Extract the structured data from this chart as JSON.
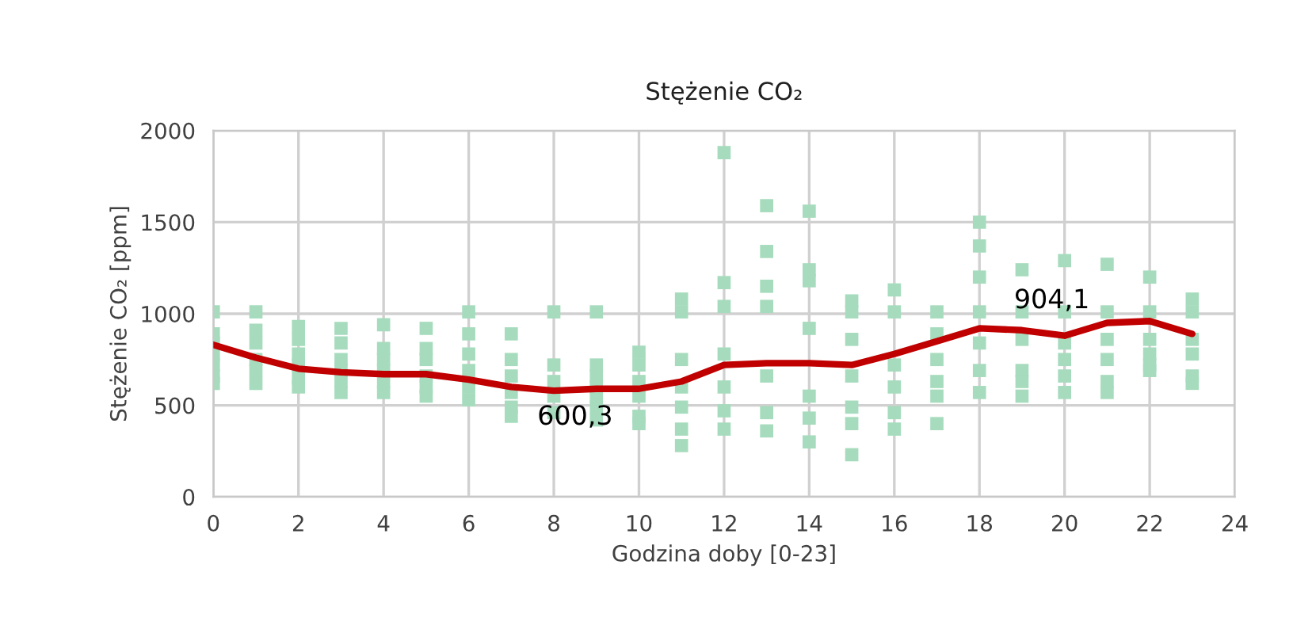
{
  "chart_data": {
    "type": "scatter",
    "title": "Stężenie CO₂",
    "xlabel": "Godzina doby [0-23]",
    "ylabel": "Stężenie CO₂ [ppm]",
    "xlim": [
      0,
      24
    ],
    "ylim": [
      0,
      2000
    ],
    "xticks": [
      0,
      2,
      4,
      6,
      8,
      10,
      12,
      14,
      16,
      18,
      20,
      22,
      24
    ],
    "yticks": [
      0,
      500,
      1000,
      1500,
      2000
    ],
    "grid": true,
    "series": [
      {
        "color": "#a6dcbd",
        "marker": "square",
        "x": [
          0,
          0,
          0,
          0,
          0,
          0,
          0,
          1,
          1,
          1,
          1,
          1,
          1,
          2,
          2,
          2,
          2,
          2,
          2,
          3,
          3,
          3,
          3,
          3,
          3,
          4,
          4,
          4,
          4,
          4,
          4,
          5,
          5,
          5,
          5,
          5,
          5,
          6,
          6,
          6,
          6,
          6,
          6,
          7,
          7,
          7,
          7,
          7,
          7,
          8,
          8,
          8,
          8,
          8,
          9,
          9,
          9,
          9,
          9,
          9,
          9,
          10,
          10,
          10,
          10,
          10,
          10,
          11,
          11,
          11,
          11,
          11,
          11,
          11,
          12,
          12,
          12,
          12,
          12,
          12,
          12,
          13,
          13,
          13,
          13,
          13,
          13,
          13,
          14,
          14,
          14,
          14,
          14,
          14,
          14,
          15,
          15,
          15,
          15,
          15,
          15,
          15,
          16,
          16,
          16,
          16,
          16,
          16,
          17,
          17,
          17,
          17,
          17,
          17,
          18,
          18,
          18,
          18,
          18,
          18,
          18,
          19,
          19,
          19,
          19,
          19,
          19,
          20,
          20,
          20,
          20,
          20,
          20,
          21,
          21,
          21,
          21,
          21,
          21,
          22,
          22,
          22,
          22,
          22,
          22,
          23,
          23,
          23,
          23,
          23,
          23
        ],
        "values": [
          1010,
          890,
          840,
          780,
          720,
          660,
          620,
          1010,
          910,
          840,
          750,
          690,
          620,
          930,
          860,
          780,
          720,
          650,
          600,
          920,
          840,
          750,
          690,
          630,
          570,
          940,
          810,
          750,
          690,
          630,
          570,
          920,
          810,
          750,
          660,
          600,
          550,
          1010,
          890,
          780,
          690,
          600,
          530,
          890,
          750,
          660,
          570,
          490,
          440,
          1010,
          720,
          630,
          550,
          460,
          1010,
          720,
          660,
          600,
          550,
          490,
          420,
          790,
          720,
          630,
          550,
          440,
          400,
          1080,
          1010,
          750,
          600,
          490,
          370,
          280,
          1880,
          1170,
          1040,
          780,
          600,
          470,
          370,
          1590,
          1340,
          1150,
          1040,
          660,
          460,
          360,
          1560,
          1240,
          1180,
          920,
          550,
          430,
          300,
          1070,
          1010,
          860,
          660,
          490,
          400,
          230,
          1130,
          1010,
          720,
          600,
          460,
          370,
          1010,
          890,
          750,
          630,
          550,
          400,
          1500,
          1370,
          1200,
          1010,
          840,
          690,
          570,
          1240,
          1010,
          860,
          690,
          630,
          550,
          1290,
          1010,
          840,
          750,
          660,
          570,
          1270,
          1010,
          860,
          750,
          630,
          570,
          1200,
          1010,
          860,
          780,
          720,
          690,
          1080,
          1010,
          860,
          780,
          660,
          620
        ]
      },
      {
        "type": "line",
        "color": "#c00000",
        "x": [
          0,
          1,
          2,
          3,
          4,
          5,
          6,
          7,
          8,
          9,
          10,
          11,
          12,
          13,
          14,
          15,
          16,
          17,
          18,
          19,
          20,
          21,
          22,
          23
        ],
        "values": [
          830,
          760,
          700,
          680,
          670,
          670,
          640,
          600,
          580,
          590,
          590,
          630,
          720,
          730,
          730,
          720,
          780,
          850,
          920,
          910,
          880,
          950,
          960,
          890
        ]
      }
    ],
    "annotations": [
      {
        "text": "600,3",
        "x": 8.5,
        "y": 600.3
      },
      {
        "text": "904,1",
        "x": 19.7,
        "y": 904.1
      }
    ]
  }
}
